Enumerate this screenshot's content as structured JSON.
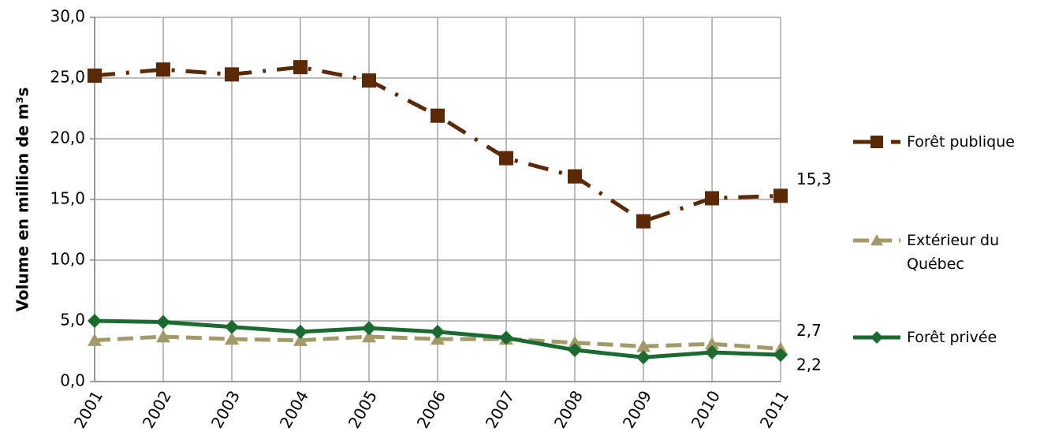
{
  "chart_data": {
    "type": "line",
    "y_label": "Volume en million de m³s",
    "categories": [
      "2001",
      "2002",
      "2003",
      "2004",
      "2005",
      "2006",
      "2007",
      "2008",
      "2009",
      "2010",
      "2011"
    ],
    "ylim": [
      0,
      30
    ],
    "yticks": [
      {
        "value": 0,
        "label": "0,0"
      },
      {
        "value": 5,
        "label": "5,0"
      },
      {
        "value": 10,
        "label": "10,0"
      },
      {
        "value": 15,
        "label": "15,0"
      },
      {
        "value": 20,
        "label": "20,0"
      },
      {
        "value": 25,
        "label": "25,0"
      },
      {
        "value": 30,
        "label": "30,0"
      }
    ],
    "grid": true,
    "legend": "right",
    "series": [
      {
        "name": "Forêt publique",
        "color": "#5a2a06",
        "dash": "dashdot",
        "marker": "square",
        "values": [
          25.2,
          25.7,
          25.3,
          25.9,
          24.8,
          21.9,
          18.4,
          16.9,
          13.2,
          15.1,
          15.3
        ],
        "value_labels": [
          null,
          null,
          null,
          null,
          null,
          null,
          null,
          null,
          null,
          null,
          "15,3"
        ]
      },
      {
        "name": "Extérieur du Québec",
        "color": "#a39a6a",
        "dash": "dashed",
        "marker": "triangle",
        "values": [
          3.4,
          3.7,
          3.5,
          3.4,
          3.7,
          3.5,
          3.5,
          3.2,
          2.9,
          3.1,
          2.7
        ],
        "value_labels": [
          null,
          null,
          null,
          null,
          null,
          null,
          null,
          null,
          null,
          null,
          "2,7"
        ]
      },
      {
        "name": "Forêt privée",
        "color": "#1b6b30",
        "dash": "solid",
        "marker": "diamond",
        "values": [
          5.0,
          4.9,
          4.5,
          4.1,
          4.4,
          4.1,
          3.6,
          2.6,
          2.0,
          2.4,
          2.2
        ],
        "value_labels": [
          null,
          null,
          null,
          null,
          null,
          null,
          null,
          null,
          null,
          null,
          "2,2"
        ]
      }
    ]
  }
}
